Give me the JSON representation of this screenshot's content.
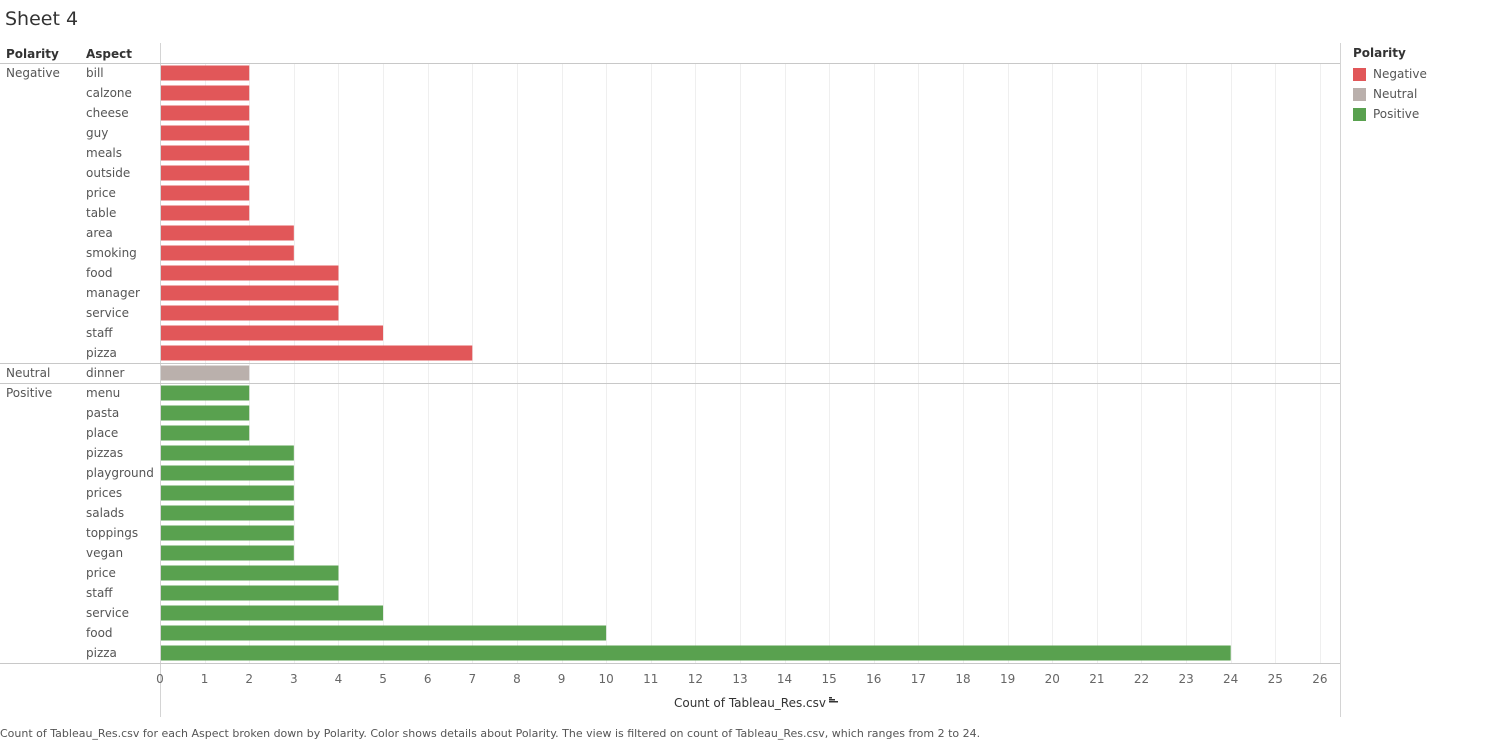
{
  "sheet_title": "Sheet 4",
  "caption": "Count of Tableau_Res.csv for each Aspect broken down by Polarity.  Color shows details about Polarity. The view is filtered on count of Tableau_Res.csv, which ranges from 2 to 24.",
  "sort_icon": "sort-descending-icon",
  "chart_data": {
    "type": "bar",
    "orientation": "horizontal",
    "row_headers": [
      "Polarity",
      "Aspect"
    ],
    "xlabel": "Count of Tableau_Res.csv",
    "xlim": [
      0,
      26
    ],
    "xticks": [
      "0",
      "1",
      "2",
      "3",
      "4",
      "5",
      "6",
      "7",
      "8",
      "9",
      "10",
      "11",
      "12",
      "13",
      "14",
      "15",
      "16",
      "17",
      "18",
      "19",
      "20",
      "21",
      "22",
      "23",
      "24",
      "25",
      "26"
    ],
    "grid": true,
    "legend": {
      "title": "Polarity",
      "placement": "right",
      "entries": [
        {
          "name": "Negative",
          "color": "#e15759"
        },
        {
          "name": "Neutral",
          "color": "#bab0ac"
        },
        {
          "name": "Positive",
          "color": "#59a14f"
        }
      ]
    },
    "groups": [
      {
        "name": "Negative",
        "color": "#e15759",
        "categories": [
          "bill",
          "calzone",
          "cheese",
          "guy",
          "meals",
          "outside",
          "price",
          "table",
          "area",
          "smoking",
          "food",
          "manager",
          "service",
          "staff",
          "pizza"
        ],
        "values": [
          2,
          2,
          2,
          2,
          2,
          2,
          2,
          2,
          3,
          3,
          4,
          4,
          4,
          5,
          7
        ]
      },
      {
        "name": "Neutral",
        "color": "#bab0ac",
        "categories": [
          "dinner"
        ],
        "values": [
          2
        ]
      },
      {
        "name": "Positive",
        "color": "#59a14f",
        "categories": [
          "menu",
          "pasta",
          "place",
          "pizzas",
          "playground",
          "prices",
          "salads",
          "toppings",
          "vegan",
          "price",
          "staff",
          "service",
          "food",
          "pizza"
        ],
        "values": [
          2,
          2,
          2,
          3,
          3,
          3,
          3,
          3,
          3,
          4,
          4,
          5,
          10,
          24
        ]
      }
    ]
  }
}
